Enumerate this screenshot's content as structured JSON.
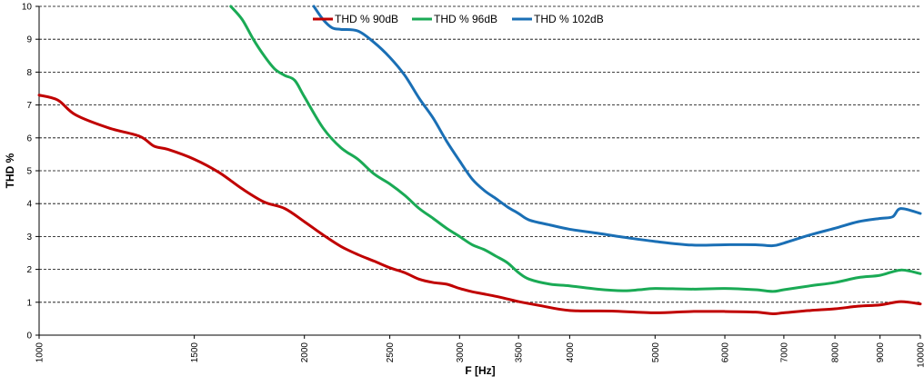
{
  "chart_data": {
    "type": "line",
    "xlabel": "F [Hz]",
    "ylabel": "THD %",
    "xscale": "log",
    "xlim": [
      1000,
      10000
    ],
    "ylim": [
      0,
      10
    ],
    "yticks": [
      0,
      1,
      2,
      3,
      4,
      5,
      6,
      7,
      8,
      9,
      10
    ],
    "xticks": [
      1000,
      1500,
      2000,
      2500,
      3000,
      3500,
      4000,
      5000,
      6000,
      7000,
      8000,
      9000,
      10000
    ],
    "grid": "horizontal dashed",
    "legend_position": "top-center",
    "series": [
      {
        "name": "THD % 90dB",
        "color": "#c00000",
        "x": [
          1000,
          1050,
          1100,
          1200,
          1300,
          1350,
          1400,
          1500,
          1600,
          1700,
          1800,
          1900,
          2000,
          2100,
          2200,
          2300,
          2400,
          2500,
          2600,
          2700,
          2800,
          2900,
          3000,
          3100,
          3200,
          3300,
          3400,
          3500,
          3700,
          4000,
          4500,
          5000,
          5500,
          6000,
          6500,
          6800,
          7000,
          7500,
          8000,
          8500,
          9000,
          9500,
          10000
        ],
        "y": [
          7.3,
          7.15,
          6.7,
          6.3,
          6.05,
          5.75,
          5.65,
          5.35,
          4.95,
          4.45,
          4.05,
          3.85,
          3.45,
          3.05,
          2.7,
          2.45,
          2.25,
          2.05,
          1.9,
          1.7,
          1.6,
          1.55,
          1.42,
          1.32,
          1.25,
          1.18,
          1.1,
          1.02,
          0.9,
          0.75,
          0.73,
          0.68,
          0.72,
          0.72,
          0.7,
          0.65,
          0.68,
          0.75,
          0.8,
          0.88,
          0.92,
          1.02,
          0.95
        ]
      },
      {
        "name": "THD % 96dB",
        "color": "#1aaa55",
        "x": [
          1650,
          1700,
          1750,
          1800,
          1850,
          1900,
          1950,
          2000,
          2100,
          2200,
          2300,
          2400,
          2500,
          2600,
          2700,
          2800,
          2900,
          3000,
          3100,
          3200,
          3300,
          3400,
          3500,
          3600,
          3800,
          4000,
          4300,
          4600,
          4800,
          5000,
          5500,
          6000,
          6500,
          6800,
          7000,
          7500,
          8000,
          8500,
          9000,
          9500,
          10000
        ],
        "y": [
          10.0,
          9.6,
          9.0,
          8.5,
          8.1,
          7.9,
          7.75,
          7.25,
          6.3,
          5.7,
          5.35,
          4.9,
          4.6,
          4.25,
          3.85,
          3.55,
          3.25,
          3.0,
          2.75,
          2.6,
          2.4,
          2.2,
          1.9,
          1.7,
          1.55,
          1.5,
          1.4,
          1.35,
          1.38,
          1.42,
          1.4,
          1.42,
          1.38,
          1.33,
          1.38,
          1.5,
          1.6,
          1.75,
          1.82,
          1.98,
          1.87
        ]
      },
      {
        "name": "THD % 102dB",
        "color": "#1a6fb5",
        "x": [
          2050,
          2100,
          2150,
          2200,
          2300,
          2400,
          2500,
          2600,
          2700,
          2800,
          2900,
          3000,
          3100,
          3200,
          3300,
          3400,
          3500,
          3600,
          3800,
          4000,
          4300,
          4600,
          5000,
          5500,
          6000,
          6500,
          6800,
          7000,
          7500,
          8000,
          8500,
          9000,
          9300,
          9500,
          10000
        ],
        "y": [
          10.0,
          9.6,
          9.35,
          9.3,
          9.25,
          8.9,
          8.45,
          7.9,
          7.2,
          6.6,
          5.9,
          5.3,
          4.75,
          4.4,
          4.15,
          3.9,
          3.7,
          3.5,
          3.35,
          3.22,
          3.1,
          2.98,
          2.85,
          2.74,
          2.75,
          2.75,
          2.72,
          2.8,
          3.05,
          3.25,
          3.45,
          3.55,
          3.6,
          3.85,
          3.7
        ]
      }
    ]
  }
}
